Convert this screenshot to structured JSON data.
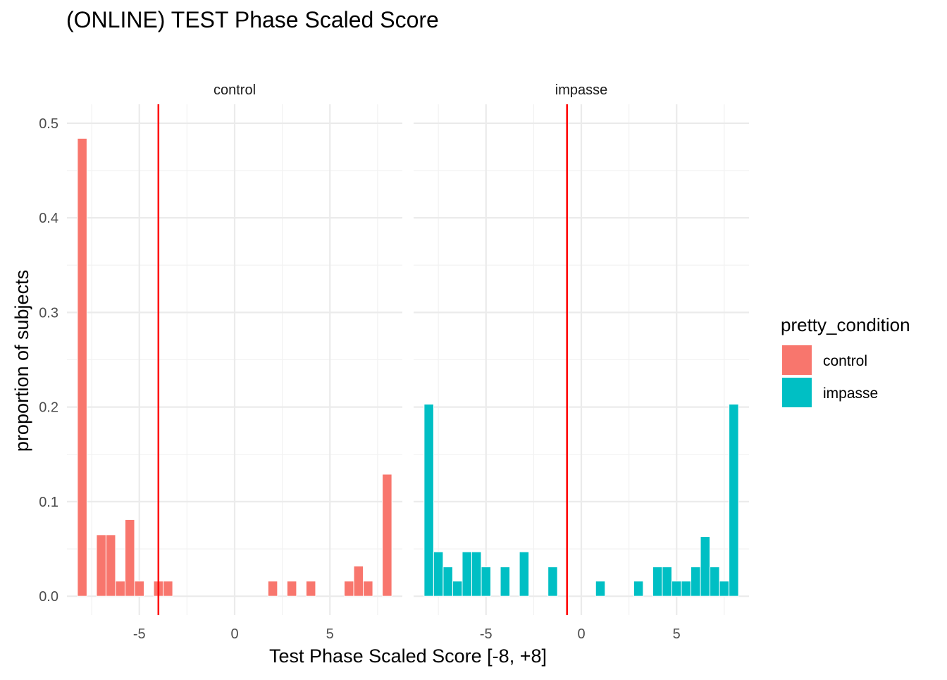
{
  "chart_data": {
    "type": "bar",
    "title": "(ONLINE) TEST Phase Scaled Score",
    "xlabel": "Test Phase Scaled Score [-8, +8]",
    "ylabel": "proportion of subjects",
    "xlim": [
      -8.8,
      8.8
    ],
    "ylim": [
      -0.02,
      0.52
    ],
    "x_ticks": [
      -5,
      0,
      5
    ],
    "y_ticks": [
      0.0,
      0.1,
      0.2,
      0.3,
      0.4,
      0.5
    ],
    "y_tick_labels": [
      "0.0",
      "0.1",
      "0.2",
      "0.3",
      "0.4",
      "0.5"
    ],
    "bin_width": 0.5,
    "grid": true,
    "legend": {
      "title": "pretty_condition",
      "position": "right",
      "entries": [
        {
          "label": "control",
          "color": "#F8766D"
        },
        {
          "label": "impasse",
          "color": "#00BFC4"
        }
      ]
    },
    "reference_line_color": "#FF0000",
    "panels": [
      {
        "strip_label": "control",
        "color": "#F8766D",
        "vline_x": -4.0,
        "bins": [
          {
            "x": -8.0,
            "value": 0.484
          },
          {
            "x": -7.0,
            "value": 0.065
          },
          {
            "x": -6.5,
            "value": 0.065
          },
          {
            "x": -6.0,
            "value": 0.016
          },
          {
            "x": -5.5,
            "value": 0.081
          },
          {
            "x": -5.0,
            "value": 0.016
          },
          {
            "x": -4.0,
            "value": 0.016
          },
          {
            "x": -3.5,
            "value": 0.016
          },
          {
            "x": 2.0,
            "value": 0.016
          },
          {
            "x": 3.0,
            "value": 0.016
          },
          {
            "x": 4.0,
            "value": 0.016
          },
          {
            "x": 6.0,
            "value": 0.016
          },
          {
            "x": 6.5,
            "value": 0.032
          },
          {
            "x": 7.0,
            "value": 0.016
          },
          {
            "x": 8.0,
            "value": 0.129
          }
        ]
      },
      {
        "strip_label": "impasse",
        "color": "#00BFC4",
        "vline_x": -0.75,
        "bins": [
          {
            "x": -8.0,
            "value": 0.203
          },
          {
            "x": -7.5,
            "value": 0.047
          },
          {
            "x": -7.0,
            "value": 0.031
          },
          {
            "x": -6.5,
            "value": 0.016
          },
          {
            "x": -6.0,
            "value": 0.047
          },
          {
            "x": -5.5,
            "value": 0.047
          },
          {
            "x": -5.0,
            "value": 0.031
          },
          {
            "x": -4.0,
            "value": 0.031
          },
          {
            "x": -3.0,
            "value": 0.047
          },
          {
            "x": -1.5,
            "value": 0.031
          },
          {
            "x": 1.0,
            "value": 0.016
          },
          {
            "x": 3.0,
            "value": 0.016
          },
          {
            "x": 4.0,
            "value": 0.031
          },
          {
            "x": 4.5,
            "value": 0.031
          },
          {
            "x": 5.0,
            "value": 0.016
          },
          {
            "x": 5.5,
            "value": 0.016
          },
          {
            "x": 6.0,
            "value": 0.031
          },
          {
            "x": 6.5,
            "value": 0.063
          },
          {
            "x": 7.0,
            "value": 0.031
          },
          {
            "x": 7.5,
            "value": 0.016
          },
          {
            "x": 8.0,
            "value": 0.203
          }
        ]
      }
    ]
  }
}
